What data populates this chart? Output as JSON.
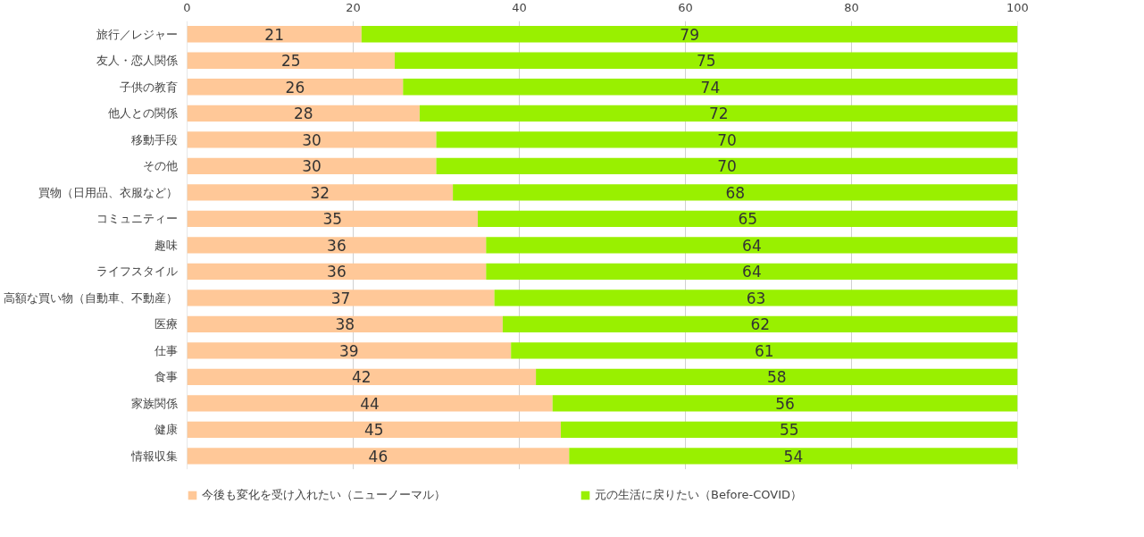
{
  "chart_data": {
    "type": "bar",
    "orientation": "horizontal",
    "stacked": true,
    "categories": [
      "旅行／レジャー",
      "友人・恋人関係",
      "子供の教育",
      "他人との関係",
      "移動手段",
      "その他",
      "買物（日用品、衣服など）",
      "コミュニティー",
      "趣味",
      "ライフスタイル",
      "高額な買い物（自動車、不動産）",
      "医療",
      "仕事",
      "食事",
      "家族関係",
      "健康",
      "情報収集"
    ],
    "series": [
      {
        "name": "今後も変化を受け入れたい（ニューノーマル）",
        "color": "#ffc898",
        "values": [
          21,
          25,
          26,
          28,
          30,
          30,
          32,
          35,
          36,
          36,
          37,
          38,
          39,
          42,
          44,
          45,
          46
        ]
      },
      {
        "name": "元の生活に戻りたい（Before-COVID）",
        "color": "#99f000",
        "values": [
          79,
          75,
          74,
          72,
          70,
          70,
          68,
          65,
          64,
          64,
          63,
          62,
          61,
          58,
          56,
          55,
          54
        ]
      }
    ],
    "xlim": [
      0,
      100
    ],
    "xticks": [
      0,
      20,
      40,
      60,
      80,
      100
    ],
    "grid": "x",
    "legend": "bottom",
    "data_labels": true
  }
}
